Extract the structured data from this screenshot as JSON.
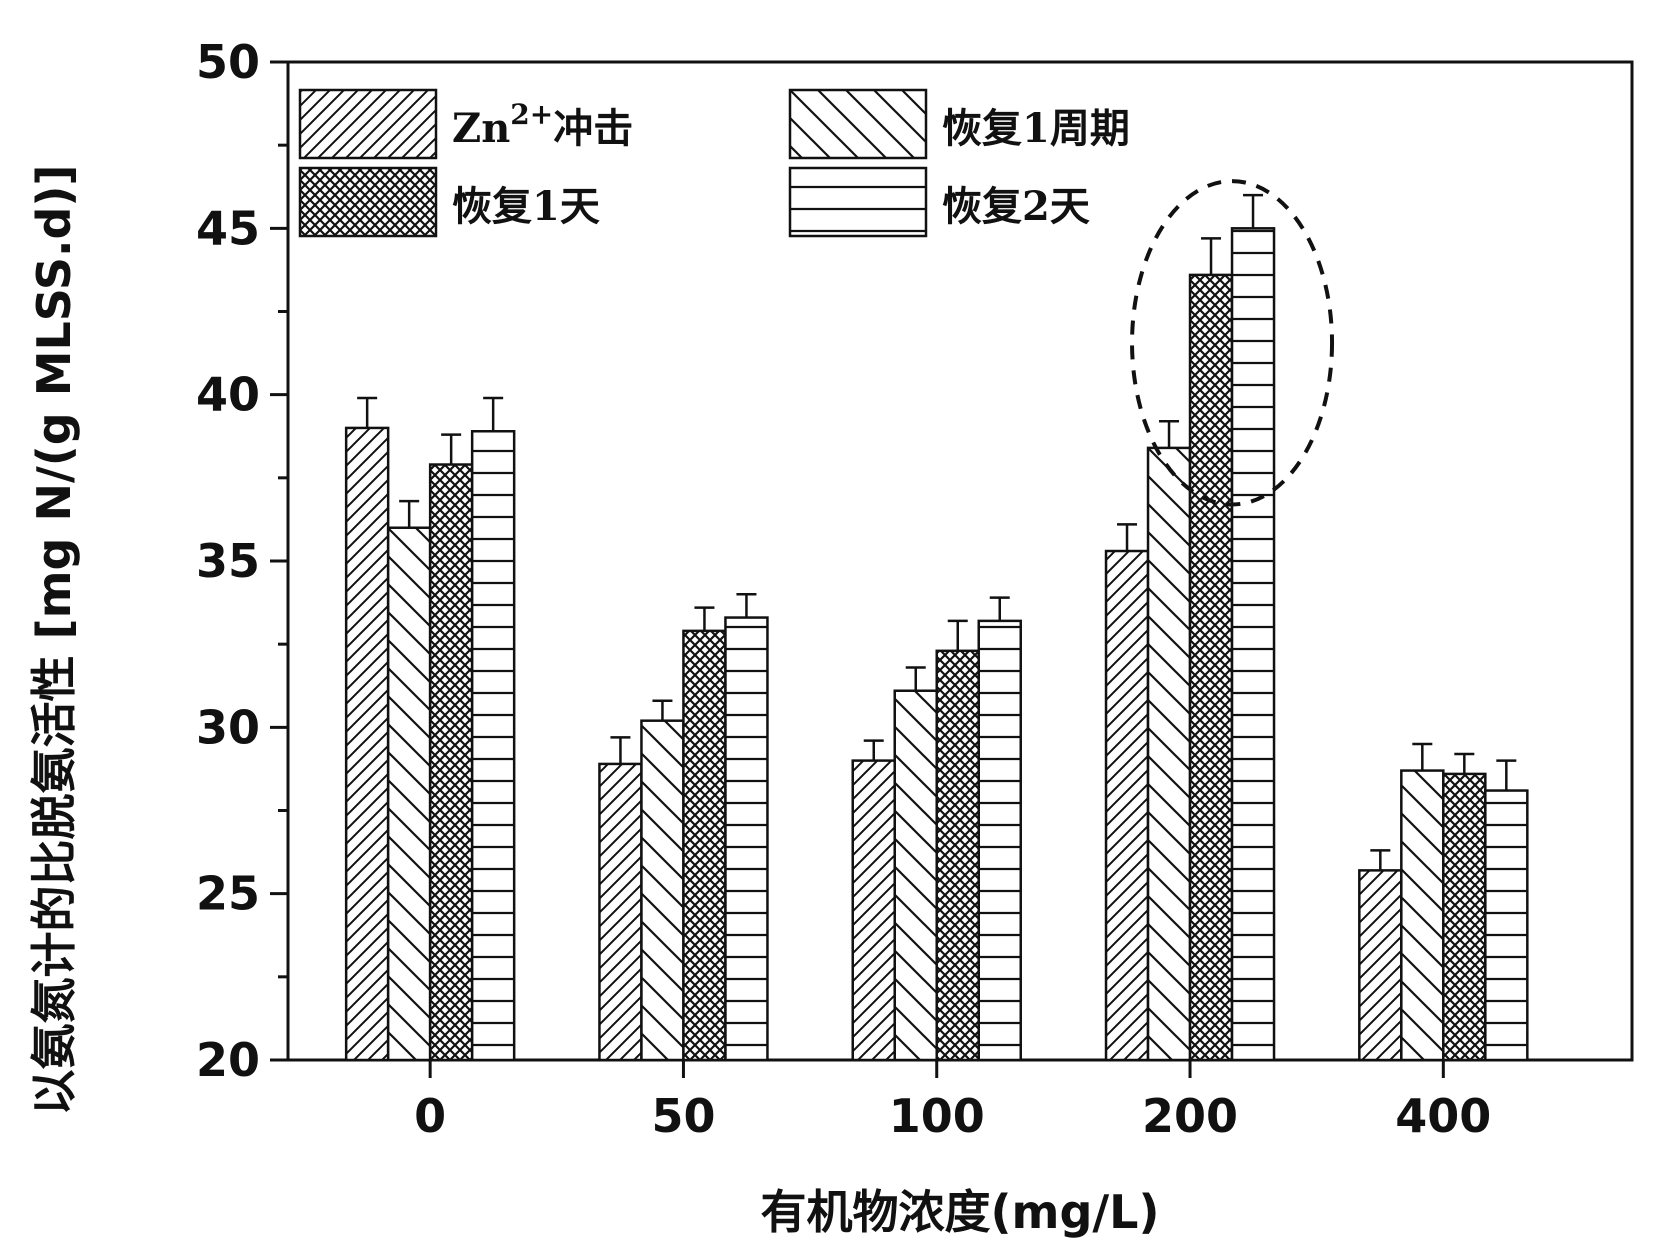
{
  "chart_data": {
    "type": "bar",
    "xlabel": "有机物浓度(mg/L)",
    "ylabel": "以氨氮计的比脱氨活性 [mg N/(g MLSS.d)]",
    "ylim": [
      20,
      50
    ],
    "yticks": [
      20,
      25,
      30,
      35,
      40,
      45,
      50
    ],
    "categories": [
      "0",
      "50",
      "100",
      "200",
      "400"
    ],
    "legend_position": "top-left",
    "series": [
      {
        "name": "Zn2+冲击",
        "pattern": "diag-right",
        "values": [
          39.0,
          28.9,
          29.0,
          35.3,
          25.7
        ],
        "errors": [
          0.9,
          0.8,
          0.6,
          0.8,
          0.6
        ]
      },
      {
        "name": "恢复1周期",
        "pattern": "diag-left",
        "values": [
          36.0,
          30.2,
          31.1,
          38.4,
          28.7
        ],
        "errors": [
          0.8,
          0.6,
          0.7,
          0.8,
          0.8
        ]
      },
      {
        "name": "恢复1天",
        "pattern": "crosshatch",
        "values": [
          37.9,
          32.9,
          32.3,
          43.6,
          28.6
        ],
        "errors": [
          0.9,
          0.7,
          0.9,
          1.1,
          0.6
        ]
      },
      {
        "name": "恢复2天",
        "pattern": "horizontal",
        "values": [
          38.9,
          33.3,
          33.2,
          45.0,
          28.1
        ],
        "errors": [
          1.0,
          0.7,
          0.7,
          1.0,
          0.9
        ]
      }
    ],
    "legend": {
      "entries": [
        {
          "label_main": "Zn",
          "label_sup": "2+",
          "label_rest": "冲击",
          "series": 0
        },
        {
          "label_main": "恢复1周期",
          "label_sup": "",
          "label_rest": "",
          "series": 1
        },
        {
          "label_main": "恢复1天",
          "label_sup": "",
          "label_rest": "",
          "series": 2
        },
        {
          "label_main": "恢复2天",
          "label_sup": "",
          "label_rest": "",
          "series": 3
        }
      ]
    },
    "annotation": {
      "type": "dashed-ellipse",
      "category": "200",
      "around_series": [
        2,
        3
      ]
    }
  }
}
